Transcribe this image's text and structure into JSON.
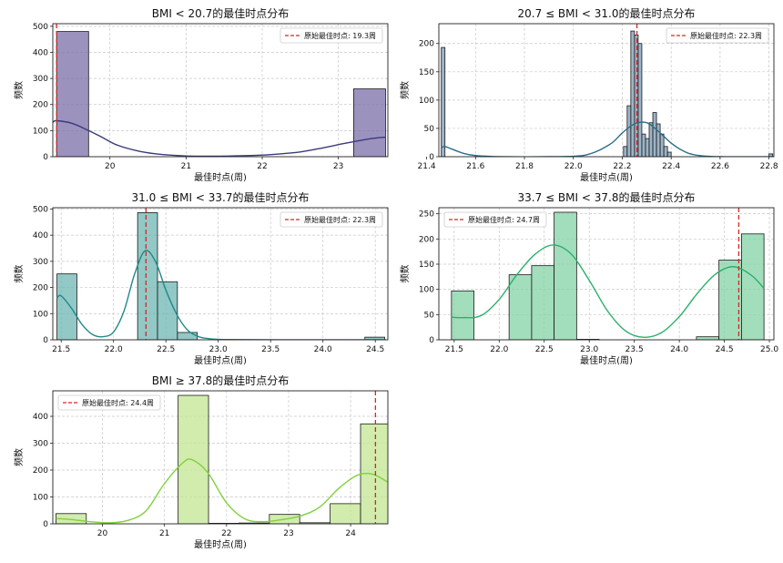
{
  "chart_data": [
    {
      "type": "bar",
      "title": "BMI < 20.7的最佳时点分布",
      "xlabel": "最佳时点(周)",
      "ylabel": "频数",
      "xlim": [
        19.25,
        23.65
      ],
      "ylim": [
        0,
        510
      ],
      "xticks": [
        20,
        21,
        22,
        23
      ],
      "yticks": [
        0,
        100,
        200,
        300,
        400,
        500
      ],
      "bins": [
        {
          "x0": 19.3,
          "x1": 19.72,
          "count": 480
        },
        {
          "x0": 23.2,
          "x1": 23.62,
          "count": 260
        }
      ],
      "kde": [
        [
          19.25,
          132
        ],
        [
          19.3,
          138
        ],
        [
          19.5,
          128
        ],
        [
          19.7,
          103
        ],
        [
          19.9,
          74
        ],
        [
          20.1,
          44
        ],
        [
          20.4,
          20
        ],
        [
          20.7,
          8
        ],
        [
          21.0,
          3
        ],
        [
          21.3,
          2
        ],
        [
          21.6,
          3
        ],
        [
          21.9,
          5
        ],
        [
          22.2,
          10
        ],
        [
          22.5,
          18
        ],
        [
          22.8,
          34
        ],
        [
          23.1,
          52
        ],
        [
          23.4,
          68
        ],
        [
          23.62,
          75
        ]
      ],
      "vline": 19.3,
      "legend": "原始最佳时点: 19.3周",
      "legend_loc": "upper right",
      "color": "#7b6ea8",
      "kde_color": "#3b3b7a"
    },
    {
      "type": "bar",
      "title": "20.7 ≤ BMI < 31.0的最佳时点分布",
      "xlabel": "最佳时点(周)",
      "ylabel": "频数",
      "xlim": [
        21.45,
        22.82
      ],
      "ylim": [
        0,
        235
      ],
      "xticks": [
        21.4,
        21.6,
        21.8,
        22.0,
        22.2,
        22.4,
        22.6,
        22.8
      ],
      "xtick_labels": [
        "21.4",
        "21.6",
        "21.8",
        "22.0",
        "22.2",
        "22.4",
        "22.6",
        "22.8"
      ],
      "yticks": [
        0,
        50,
        100,
        150,
        200
      ],
      "bins": [
        {
          "x0": 21.46,
          "x1": 21.475,
          "count": 193
        },
        {
          "x0": 22.205,
          "x1": 22.22,
          "count": 18
        },
        {
          "x0": 22.22,
          "x1": 22.235,
          "count": 90
        },
        {
          "x0": 22.235,
          "x1": 22.25,
          "count": 222
        },
        {
          "x0": 22.25,
          "x1": 22.265,
          "count": 215
        },
        {
          "x0": 22.265,
          "x1": 22.28,
          "count": 200
        },
        {
          "x0": 22.28,
          "x1": 22.295,
          "count": 40
        },
        {
          "x0": 22.295,
          "x1": 22.31,
          "count": 32
        },
        {
          "x0": 22.31,
          "x1": 22.325,
          "count": 60
        },
        {
          "x0": 22.325,
          "x1": 22.34,
          "count": 78
        },
        {
          "x0": 22.34,
          "x1": 22.355,
          "count": 58
        },
        {
          "x0": 22.355,
          "x1": 22.37,
          "count": 40
        },
        {
          "x0": 22.37,
          "x1": 22.385,
          "count": 18
        },
        {
          "x0": 22.385,
          "x1": 22.4,
          "count": 8
        },
        {
          "x0": 22.8,
          "x1": 22.815,
          "count": 5
        }
      ],
      "kde": [
        [
          21.46,
          16
        ],
        [
          21.475,
          18
        ],
        [
          21.5,
          14
        ],
        [
          21.55,
          6
        ],
        [
          21.6,
          2
        ],
        [
          21.7,
          0
        ],
        [
          21.9,
          0
        ],
        [
          22.05,
          3
        ],
        [
          22.15,
          22
        ],
        [
          22.2,
          42
        ],
        [
          22.25,
          58
        ],
        [
          22.3,
          60
        ],
        [
          22.35,
          44
        ],
        [
          22.4,
          24
        ],
        [
          22.45,
          10
        ],
        [
          22.5,
          3
        ],
        [
          22.6,
          0
        ],
        [
          22.82,
          0
        ]
      ],
      "vline": 22.26,
      "legend": "原始最佳时点: 22.3周",
      "legend_loc": "upper right",
      "color": "#7c9bb5",
      "kde_color": "#2b6f8a"
    },
    {
      "type": "bar",
      "title": "31.0 ≤ BMI < 33.7的最佳时点分布",
      "xlabel": "最佳时点(周)",
      "ylabel": "频数",
      "xlim": [
        21.42,
        24.62
      ],
      "ylim": [
        0,
        505
      ],
      "xticks": [
        21.5,
        22.0,
        22.5,
        23.0,
        23.5,
        24.0,
        24.5
      ],
      "xtick_labels": [
        "21.5",
        "22.0",
        "22.5",
        "23.0",
        "23.5",
        "24.0",
        "24.5"
      ],
      "yticks": [
        0,
        100,
        200,
        300,
        400,
        500
      ],
      "bins": [
        {
          "x0": 21.46,
          "x1": 21.65,
          "count": 252
        },
        {
          "x0": 22.23,
          "x1": 22.42,
          "count": 486
        },
        {
          "x0": 22.42,
          "x1": 22.61,
          "count": 222
        },
        {
          "x0": 22.61,
          "x1": 22.8,
          "count": 28
        },
        {
          "x0": 24.4,
          "x1": 24.59,
          "count": 10
        }
      ],
      "kde": [
        [
          21.46,
          160
        ],
        [
          21.5,
          168
        ],
        [
          21.6,
          120
        ],
        [
          21.7,
          58
        ],
        [
          21.8,
          20
        ],
        [
          21.9,
          12
        ],
        [
          22.0,
          30
        ],
        [
          22.1,
          110
        ],
        [
          22.2,
          250
        ],
        [
          22.3,
          340
        ],
        [
          22.4,
          300
        ],
        [
          22.5,
          190
        ],
        [
          22.6,
          100
        ],
        [
          22.7,
          40
        ],
        [
          22.8,
          14
        ],
        [
          22.9,
          5
        ],
        [
          23.1,
          1
        ],
        [
          24.0,
          0
        ],
        [
          24.6,
          0
        ]
      ],
      "vline": 22.31,
      "legend": "原始最佳时点: 22.3周",
      "legend_loc": "upper right",
      "color": "#6db5b1",
      "kde_color": "#1f8a8a"
    },
    {
      "type": "bar",
      "title": "33.7 ≤ BMI < 37.8的最佳时点分布",
      "xlabel": "最佳时点(周)",
      "ylabel": "频数",
      "xlim": [
        21.33,
        25.05
      ],
      "ylim": [
        0,
        262
      ],
      "xticks": [
        21.5,
        22.0,
        22.5,
        23.0,
        23.5,
        24.0,
        24.5,
        25.0
      ],
      "xtick_labels": [
        "21.5",
        "22.0",
        "22.5",
        "23.0",
        "23.5",
        "24.0",
        "24.5",
        "25.0"
      ],
      "yticks": [
        0,
        50,
        100,
        150,
        200,
        250
      ],
      "bins": [
        {
          "x0": 21.47,
          "x1": 21.72,
          "count": 97
        },
        {
          "x0": 22.11,
          "x1": 22.36,
          "count": 129
        },
        {
          "x0": 22.36,
          "x1": 22.61,
          "count": 147
        },
        {
          "x0": 22.61,
          "x1": 22.86,
          "count": 253
        },
        {
          "x0": 22.86,
          "x1": 23.11,
          "count": 1
        },
        {
          "x0": 24.19,
          "x1": 24.44,
          "count": 6
        },
        {
          "x0": 24.44,
          "x1": 24.69,
          "count": 158
        },
        {
          "x0": 24.69,
          "x1": 24.94,
          "count": 210
        }
      ],
      "kde": [
        [
          21.47,
          45
        ],
        [
          21.6,
          44
        ],
        [
          21.8,
          48
        ],
        [
          22.0,
          80
        ],
        [
          22.2,
          130
        ],
        [
          22.4,
          170
        ],
        [
          22.6,
          188
        ],
        [
          22.8,
          170
        ],
        [
          23.0,
          118
        ],
        [
          23.2,
          58
        ],
        [
          23.4,
          18
        ],
        [
          23.6,
          5
        ],
        [
          23.8,
          14
        ],
        [
          24.0,
          46
        ],
        [
          24.2,
          92
        ],
        [
          24.4,
          130
        ],
        [
          24.6,
          145
        ],
        [
          24.8,
          128
        ],
        [
          24.94,
          102
        ]
      ],
      "vline": 24.66,
      "legend": "原始最佳时点: 24.7周",
      "legend_loc": "upper left",
      "color": "#83d3a5",
      "kde_color": "#2bb06a"
    },
    {
      "type": "bar",
      "title": "BMI ≥ 37.8的最佳时点分布",
      "xlabel": "最佳时点(周)",
      "ylabel": "频数",
      "xlim": [
        19.2,
        24.6
      ],
      "ylim": [
        0,
        495
      ],
      "xticks": [
        20,
        21,
        22,
        23,
        24
      ],
      "yticks": [
        0,
        100,
        200,
        300,
        400
      ],
      "bins": [
        {
          "x0": 19.25,
          "x1": 19.74,
          "count": 38
        },
        {
          "x0": 21.22,
          "x1": 21.71,
          "count": 478
        },
        {
          "x0": 21.71,
          "x1": 22.2,
          "count": 2
        },
        {
          "x0": 22.2,
          "x1": 22.69,
          "count": 3
        },
        {
          "x0": 22.69,
          "x1": 23.18,
          "count": 35
        },
        {
          "x0": 23.18,
          "x1": 23.67,
          "count": 4
        },
        {
          "x0": 23.67,
          "x1": 24.16,
          "count": 75
        },
        {
          "x0": 24.16,
          "x1": 24.65,
          "count": 372
        }
      ],
      "kde": [
        [
          19.25,
          20
        ],
        [
          19.5,
          16
        ],
        [
          19.8,
          8
        ],
        [
          20.1,
          4
        ],
        [
          20.4,
          12
        ],
        [
          20.7,
          48
        ],
        [
          21.0,
          150
        ],
        [
          21.3,
          228
        ],
        [
          21.45,
          238
        ],
        [
          21.7,
          190
        ],
        [
          22.0,
          78
        ],
        [
          22.3,
          18
        ],
        [
          22.6,
          8
        ],
        [
          22.9,
          16
        ],
        [
          23.2,
          30
        ],
        [
          23.5,
          62
        ],
        [
          23.8,
          130
        ],
        [
          24.1,
          180
        ],
        [
          24.35,
          185
        ],
        [
          24.6,
          155
        ]
      ],
      "vline": 24.4,
      "legend": "原始最佳时点: 24.4周",
      "legend_loc": "upper left",
      "color": "#c2e591",
      "kde_color": "#7fd13b"
    }
  ]
}
